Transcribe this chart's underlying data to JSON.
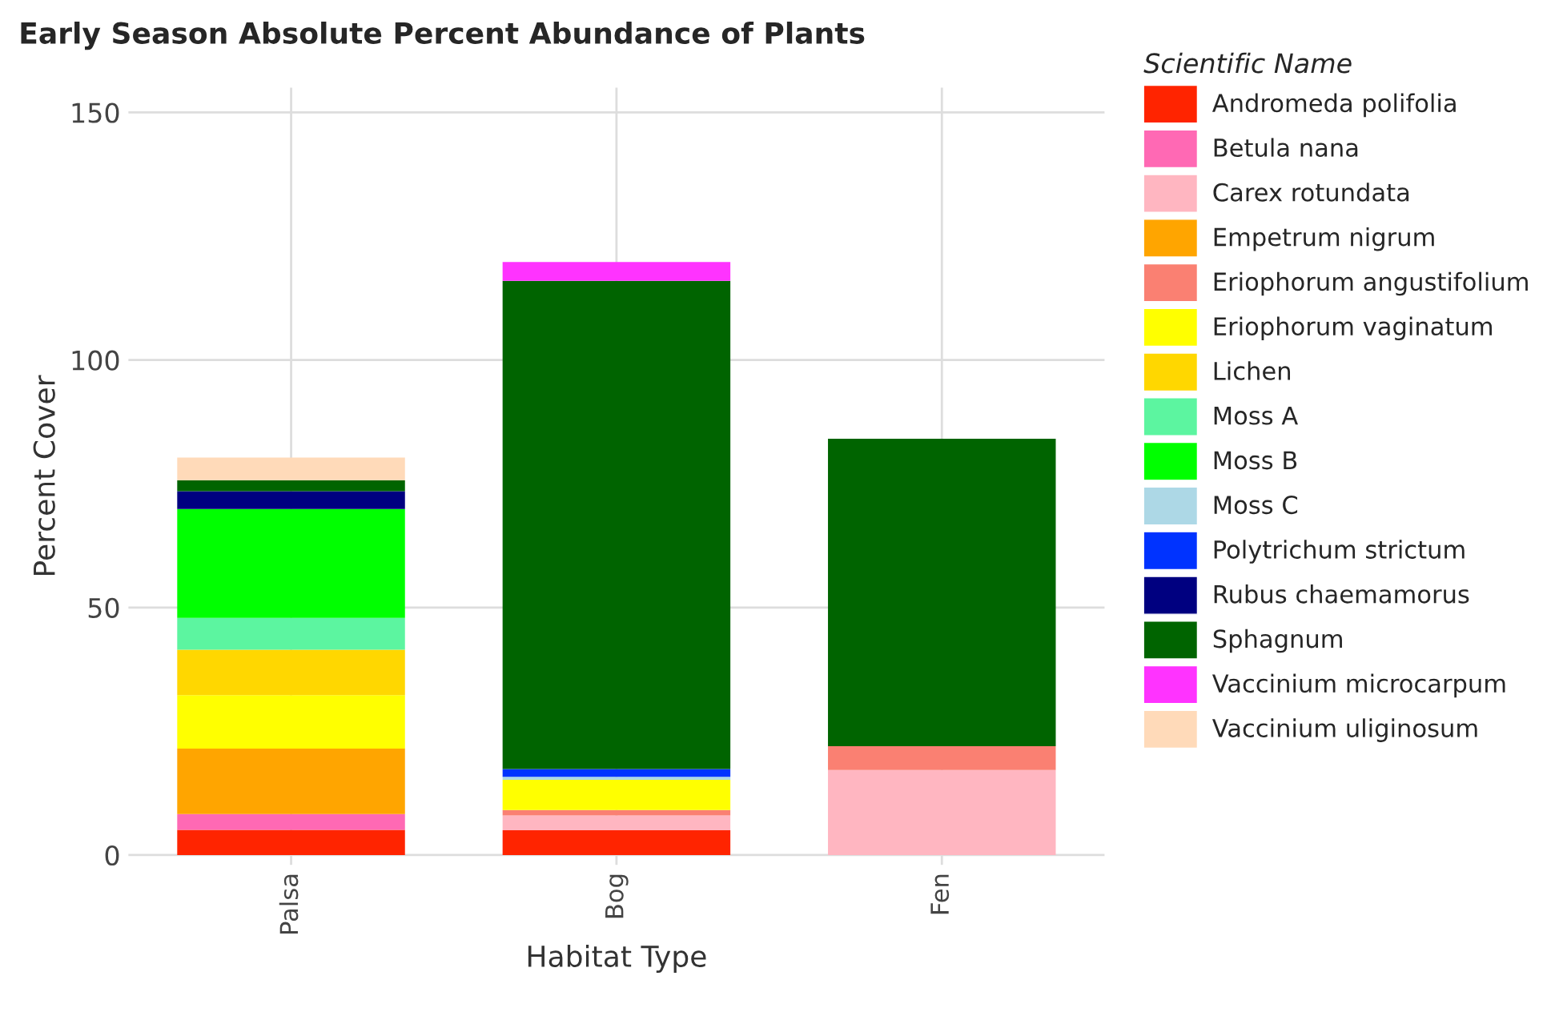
{
  "chart_data": {
    "type": "bar",
    "stacked": true,
    "title": "Early Season Absolute Percent Abundance of Plants",
    "xlabel": "Habitat Type",
    "ylabel": "Percent Cover",
    "legend_title": "Scientific Name",
    "legend": "right",
    "grid": true,
    "categories": [
      "Palsa",
      "Bog",
      "Fen"
    ],
    "ylim": [
      -2,
      155
    ],
    "yticks": [
      0,
      50,
      100,
      150
    ],
    "series": [
      {
        "name": "Andromeda polifolia",
        "color": "#ff2400",
        "values": [
          5.1,
          5.0,
          0
        ]
      },
      {
        "name": "Betula nana",
        "color": "#ff69b4",
        "values": [
          3.2,
          0,
          0
        ]
      },
      {
        "name": "Carex rotundata",
        "color": "#ffb6c1",
        "values": [
          0,
          3.0,
          17.2
        ]
      },
      {
        "name": "Empetrum nigrum",
        "color": "#ffa500",
        "values": [
          13.2,
          0,
          0
        ]
      },
      {
        "name": "Eriophorum angustifolium",
        "color": "#fa8072",
        "values": [
          0,
          1.1,
          4.8
        ]
      },
      {
        "name": "Eriophorum vaginatum",
        "color": "#ffff00",
        "values": [
          10.8,
          6.1,
          0
        ]
      },
      {
        "name": "Lichen",
        "color": "#ffd700",
        "values": [
          9.2,
          0,
          0
        ]
      },
      {
        "name": "Moss A",
        "color": "#5cf5a0",
        "values": [
          6.4,
          0,
          0
        ]
      },
      {
        "name": "Moss B",
        "color": "#00ff00",
        "values": [
          22.0,
          0,
          0
        ]
      },
      {
        "name": "Moss C",
        "color": "#add8e6",
        "values": [
          0,
          0.6,
          0
        ]
      },
      {
        "name": "Polytrichum strictum",
        "color": "#0033ff",
        "values": [
          0,
          1.6,
          0
        ]
      },
      {
        "name": "Rubus chaemamorus",
        "color": "#000080",
        "values": [
          3.6,
          0,
          0
        ]
      },
      {
        "name": "Sphagnum",
        "color": "#006400",
        "values": [
          2.2,
          98.6,
          62.1
        ]
      },
      {
        "name": "Vaccinium microcarpum",
        "color": "#ff33ff",
        "values": [
          0,
          3.8,
          0
        ]
      },
      {
        "name": "Vaccinium uliginosum",
        "color": "#ffdab9",
        "values": [
          4.6,
          0,
          0
        ]
      }
    ]
  }
}
